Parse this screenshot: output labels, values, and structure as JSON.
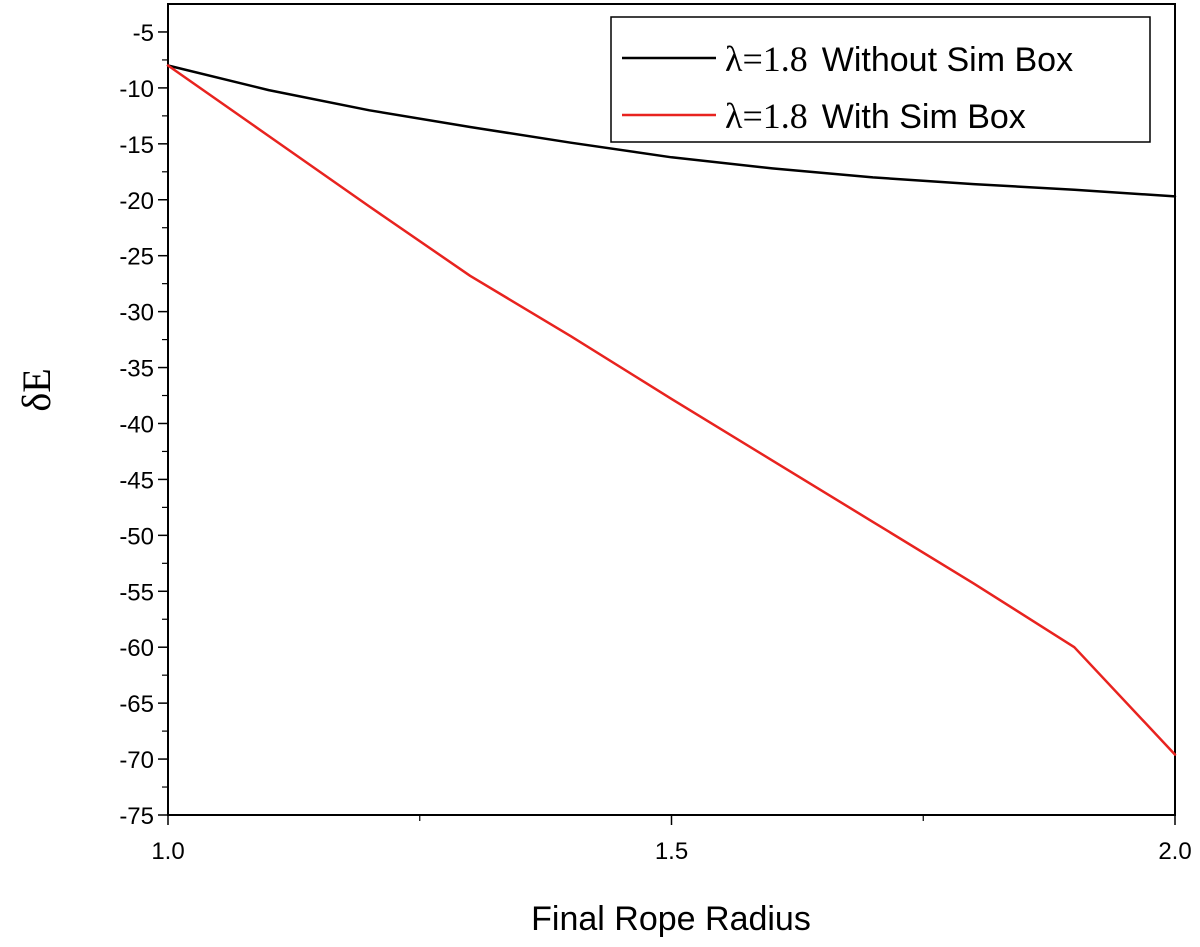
{
  "chart_data": {
    "type": "line",
    "title": "",
    "xlabel": "Final Rope Radius",
    "ylabel": "δE",
    "xlim": [
      1.0,
      2.0
    ],
    "ylim": [
      -75,
      -2.5
    ],
    "xticks": [
      1.0,
      1.5,
      2.0
    ],
    "xtick_labels": [
      "1.0",
      "1.5",
      "2.0"
    ],
    "yticks": [
      -75,
      -70,
      -65,
      -60,
      -55,
      -50,
      -45,
      -40,
      -35,
      -30,
      -25,
      -20,
      -15,
      -10,
      -5
    ],
    "ytick_labels": [
      "-75",
      "-70",
      "-65",
      "-60",
      "-55",
      "-50",
      "-45",
      "-40",
      "-35",
      "-30",
      "-25",
      "-20",
      "-15",
      "-10",
      "-5"
    ],
    "grid": false,
    "legend_position": "top-right",
    "series": [
      {
        "name_lambda": "λ=1.8",
        "name_rest": "Without Sim Box",
        "color": "#000000",
        "x": [
          1.0,
          1.1,
          1.2,
          1.3,
          1.4,
          1.5,
          1.6,
          1.7,
          1.8,
          1.9,
          2.0
        ],
        "y": [
          -8.0,
          -10.2,
          -12.0,
          -13.5,
          -14.9,
          -16.2,
          -17.2,
          -18.0,
          -18.6,
          -19.1,
          -19.7
        ]
      },
      {
        "name_lambda": "λ=1.8",
        "name_rest": "With Sim Box",
        "color": "#e8231f",
        "x": [
          1.0,
          1.1,
          1.2,
          1.3,
          1.4,
          1.5,
          1.6,
          1.7,
          1.8,
          1.9,
          2.0
        ],
        "y": [
          -8.0,
          -14.3,
          -20.6,
          -26.8,
          -32.2,
          -37.8,
          -43.3,
          -48.8,
          -54.3,
          -60.0,
          -69.6
        ]
      }
    ]
  }
}
